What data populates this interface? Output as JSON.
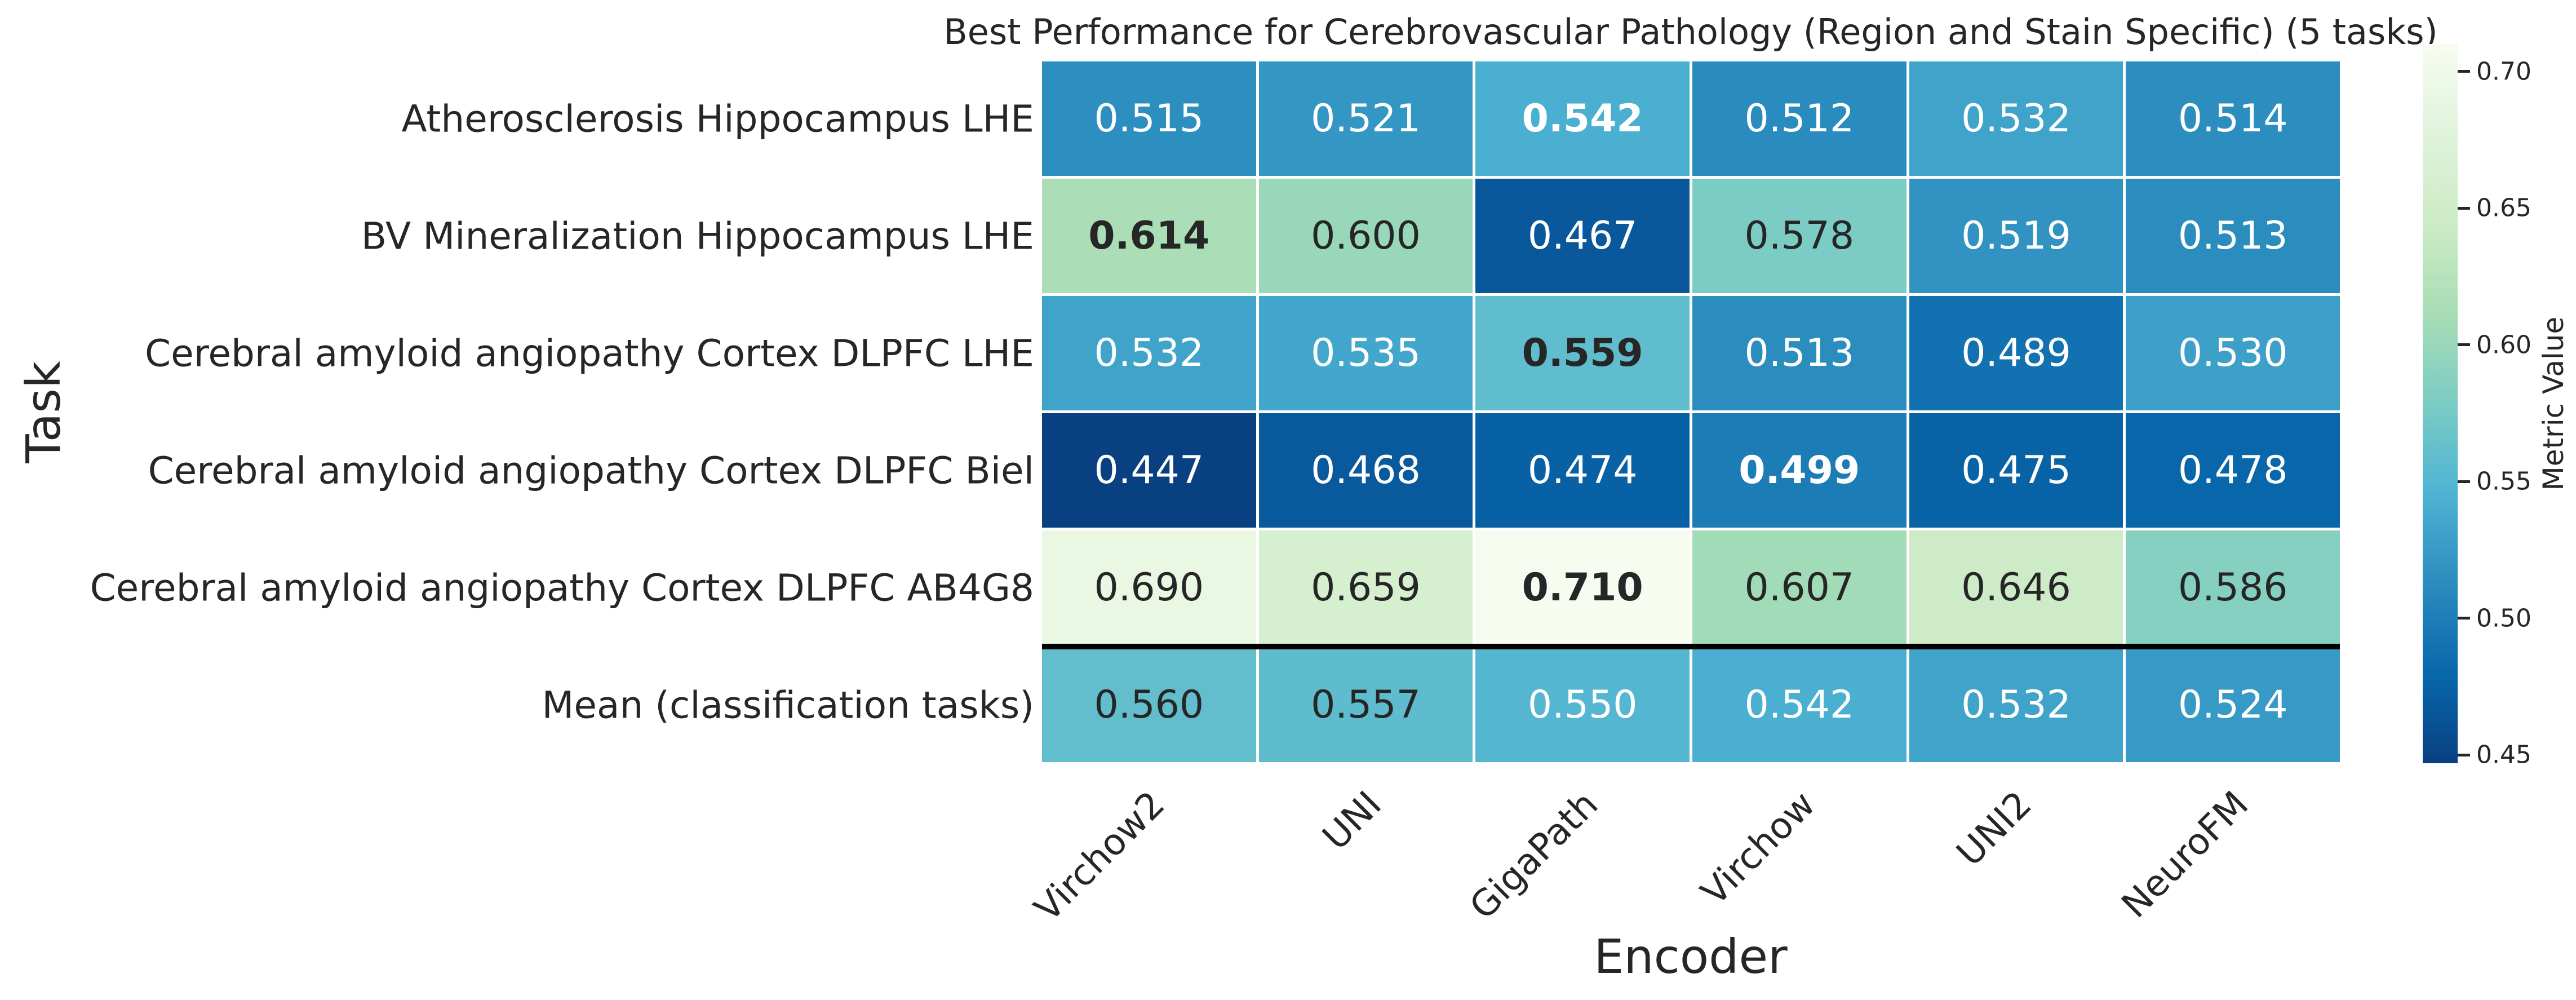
{
  "chart_data": {
    "type": "heatmap",
    "title": "Best Performance for Cerebrovascular Pathology (Region and Stain Specific) (5 tasks)",
    "xlabel": "Encoder",
    "ylabel": "Task",
    "colorbar_label": "Metric Value",
    "columns": [
      "Virchow2",
      "UNI",
      "GigaPath",
      "Virchow",
      "UNI2",
      "NeuroFM"
    ],
    "rows": [
      "Atherosclerosis Hippocampus LHE",
      "BV Mineralization Hippocampus LHE",
      "Cerebral amyloid angiopathy Cortex DLPFC LHE",
      "Cerebral amyloid angiopathy Cortex DLPFC Biel",
      "Cerebral amyloid angiopathy Cortex DLPFC AB4G8",
      "Mean (classification tasks)"
    ],
    "values": [
      [
        0.515,
        0.521,
        0.542,
        0.512,
        0.532,
        0.514
      ],
      [
        0.614,
        0.6,
        0.467,
        0.578,
        0.519,
        0.513
      ],
      [
        0.532,
        0.535,
        0.559,
        0.513,
        0.489,
        0.53
      ],
      [
        0.447,
        0.468,
        0.474,
        0.499,
        0.475,
        0.478
      ],
      [
        0.69,
        0.659,
        0.71,
        0.607,
        0.646,
        0.586
      ],
      [
        0.56,
        0.557,
        0.55,
        0.542,
        0.532,
        0.524
      ]
    ],
    "value_decimals": 3,
    "bold_cells": [
      [
        0,
        2
      ],
      [
        1,
        0
      ],
      [
        2,
        2
      ],
      [
        3,
        3
      ],
      [
        4,
        2
      ]
    ],
    "vmin": 0.447,
    "vmax": 0.71,
    "colormap": "GnBu_r",
    "colormap_stops_low_to_high_value": [
      "#084081",
      "#0868ac",
      "#2b8cbe",
      "#4eb3d3",
      "#7bccc4",
      "#a8ddb5",
      "#ccebc5",
      "#e0f3db",
      "#f7fcf0"
    ],
    "colorbar_ticks": [
      0.45,
      0.5,
      0.55,
      0.6,
      0.65,
      0.7
    ],
    "colorbar_tick_labels": [
      "0.45",
      "0.50",
      "0.55",
      "0.60",
      "0.65",
      "0.70"
    ],
    "separator_after_row_index": 4,
    "grid_line_color": "#ffffff",
    "separator_color": "#000000",
    "annotation_text_dark": "#262626",
    "annotation_text_light": "#ffffff",
    "legend_position": "right",
    "grid": false
  }
}
